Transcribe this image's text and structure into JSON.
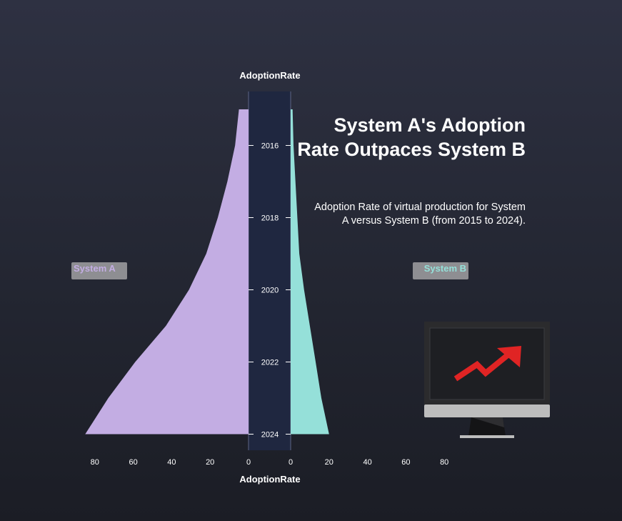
{
  "chart_data": {
    "type": "area",
    "layout": "back-to-back",
    "title": "System A's Adoption Rate Outpaces System B",
    "subtitle": "Adoption Rate of virtual production for System A versus System B (from 2015 to 2024).",
    "axis_title_top": "AdoptionRate",
    "axis_title_bottom": "AdoptionRate",
    "xlim": [
      0,
      80
    ],
    "x_ticks": [
      80,
      60,
      40,
      20,
      0
    ],
    "x_ticks_right": [
      0,
      20,
      40,
      60,
      80
    ],
    "years": [
      2015,
      2016,
      2017,
      2018,
      2019,
      2020,
      2021,
      2022,
      2023,
      2024
    ],
    "year_tick_labels": [
      "2016",
      "2018",
      "2020",
      "2022",
      "2024"
    ],
    "series": [
      {
        "name": "System A",
        "side": "left",
        "color": "#c3ade3",
        "values": [
          5,
          7,
          11,
          16,
          22,
          31,
          43,
          59,
          73,
          85
        ]
      },
      {
        "name": "System B",
        "side": "right",
        "color": "#95e0d9",
        "values": [
          1,
          1.5,
          2.5,
          3.5,
          4.5,
          7,
          10,
          13,
          16,
          20
        ]
      }
    ],
    "legend": {
      "a_label": "System A",
      "b_label": "System B"
    },
    "colors": {
      "band": "#1f2740",
      "axis_line": "#5d6485",
      "legend_bg": "#8e8e92"
    }
  }
}
